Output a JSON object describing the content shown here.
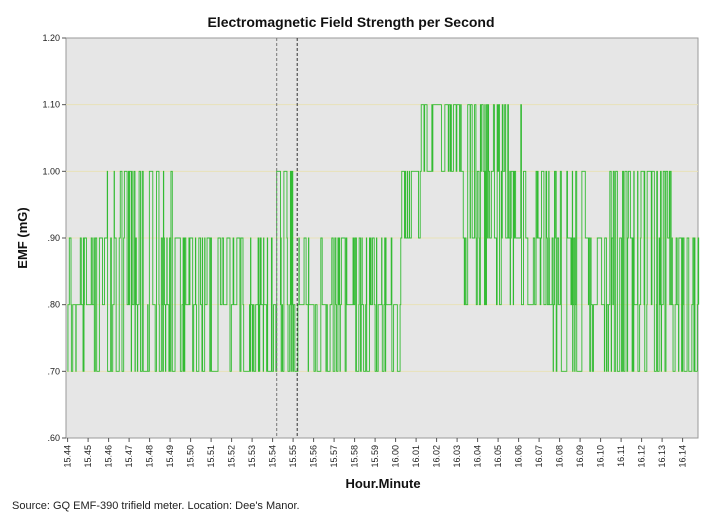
{
  "chart_data": {
    "type": "line",
    "title": "Electromagnetic Field Strength per Second",
    "xlabel": "Hour.Minute",
    "ylabel": "EMF (mG)",
    "ylim": [
      0.6,
      1.2
    ],
    "y_ticks": [
      "1.20",
      "1.10",
      "1.00",
      ".90",
      ".80",
      ".70",
      ".60"
    ],
    "y_tick_values": [
      1.2,
      1.1,
      1.0,
      0.9,
      0.8,
      0.7,
      0.6
    ],
    "x_ticks": [
      "15.44",
      "15.45",
      "15.46",
      "15.47",
      "15.48",
      "15.49",
      "15.50",
      "15.51",
      "15.52",
      "15.53",
      "15.54",
      "15.55",
      "15.56",
      "15.57",
      "15.58",
      "15.59",
      "16.00",
      "16.01",
      "16.02",
      "16.03",
      "16.04",
      "16.05",
      "16.06",
      "16.07",
      "16.08",
      "16.09",
      "16.10",
      "16.11",
      "16.12",
      "16.13",
      "16.14"
    ],
    "x_minutes_start": 0,
    "x_minutes_end": 30.8,
    "reference_lines_minutes": [
      10.2,
      11.2
    ],
    "gridlines": true,
    "series": [
      {
        "name": "EMF",
        "color": "#33bb33",
        "segments": [
          {
            "start": 0.0,
            "end": 1.5,
            "values": [
              0.7,
              0.8,
              0.9
            ]
          },
          {
            "start": 1.5,
            "end": 5.5,
            "values": [
              0.7,
              0.8,
              0.9,
              0.8,
              1.0
            ]
          },
          {
            "start": 5.5,
            "end": 10.2,
            "values": [
              0.7,
              0.8,
              0.9
            ]
          },
          {
            "start": 10.2,
            "end": 11.2,
            "values": [
              0.8,
              0.9,
              1.0,
              0.7
            ]
          },
          {
            "start": 11.2,
            "end": 15.0,
            "values": [
              0.7,
              0.8,
              0.9
            ]
          },
          {
            "start": 15.0,
            "end": 16.3,
            "values": [
              0.8,
              0.9,
              0.7
            ]
          },
          {
            "start": 16.3,
            "end": 17.2,
            "values": [
              0.9,
              1.0
            ]
          },
          {
            "start": 17.2,
            "end": 19.2,
            "values": [
              1.0,
              1.1
            ]
          },
          {
            "start": 19.2,
            "end": 22.3,
            "values": [
              0.8,
              0.9,
              1.0,
              1.1
            ]
          },
          {
            "start": 22.3,
            "end": 23.5,
            "values": [
              0.8,
              0.9,
              1.0
            ]
          },
          {
            "start": 23.5,
            "end": 26.0,
            "values": [
              0.7,
              0.8,
              0.9,
              1.0
            ]
          },
          {
            "start": 26.0,
            "end": 29.5,
            "values": [
              0.7,
              0.8,
              0.9,
              1.0
            ]
          },
          {
            "start": 29.5,
            "end": 30.8,
            "values": [
              0.8,
              0.9,
              0.7
            ]
          }
        ]
      }
    ]
  },
  "footer": {
    "source": "Source: GQ EMF-390 trifield meter. Location: Dee's Manor."
  }
}
